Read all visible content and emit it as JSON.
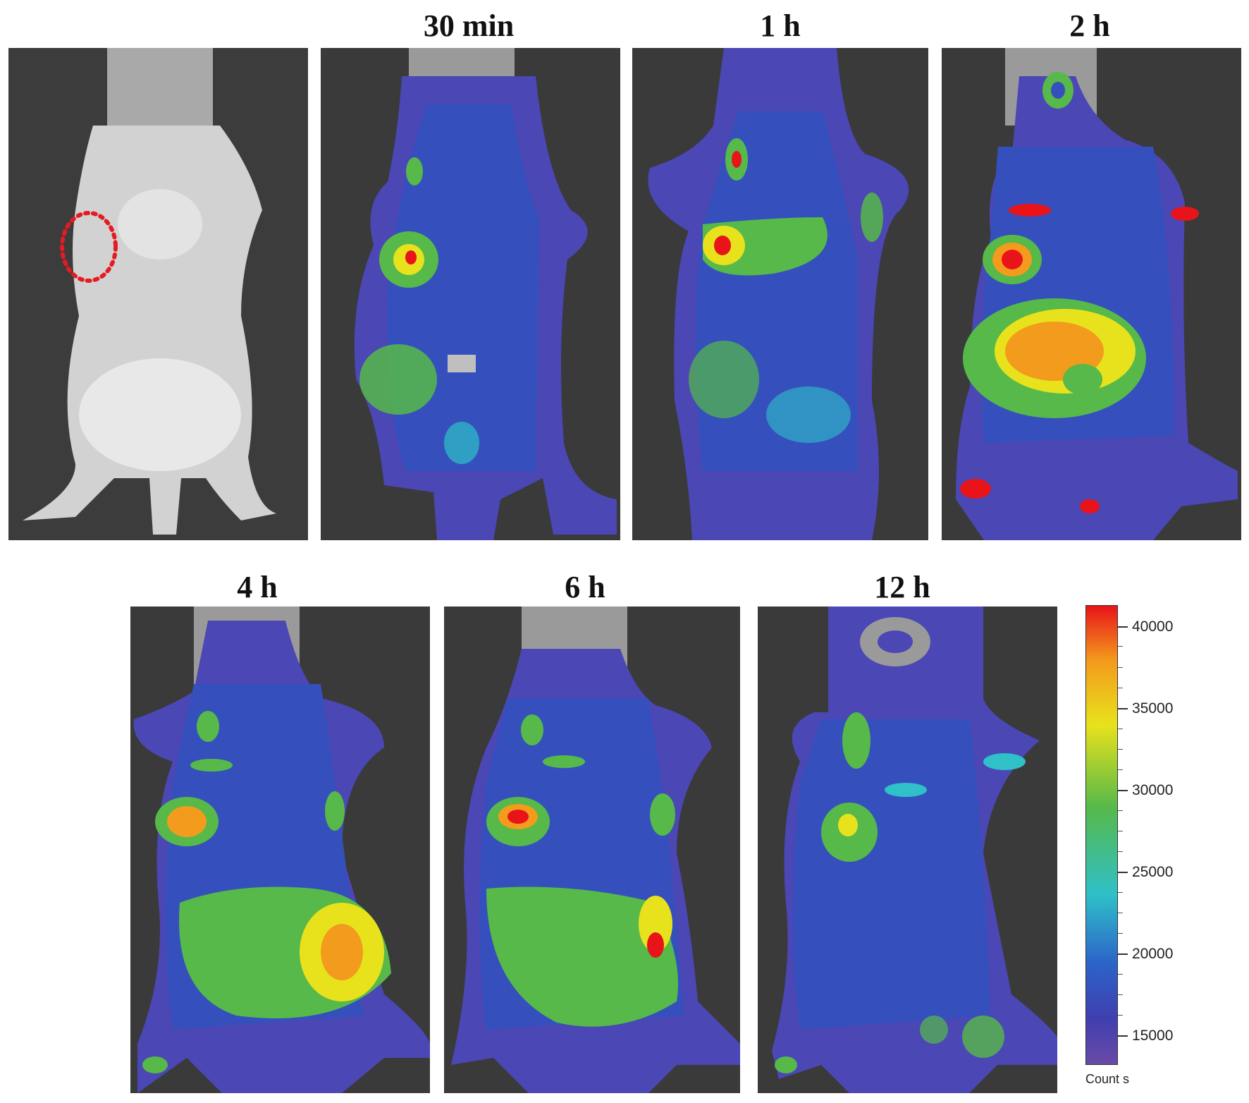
{
  "panels": [
    {
      "label": ""
    },
    {
      "label": "30 min"
    },
    {
      "label": "1 h"
    },
    {
      "label": "2 h"
    },
    {
      "label": "4 h"
    },
    {
      "label": "6 h"
    },
    {
      "label": "12 h"
    }
  ],
  "colorbar": {
    "ticks": [
      "40000",
      "35000",
      "30000",
      "25000",
      "20000",
      "15000"
    ],
    "unit": "Count s",
    "colors": [
      "#e8141a",
      "#f39b1c",
      "#e8e21c",
      "#56b949",
      "#2fc0c8",
      "#2c63c8",
      "#6a4aa6"
    ]
  },
  "annotation": {
    "marker": "dotted-ellipse",
    "color": "#e31b23"
  }
}
